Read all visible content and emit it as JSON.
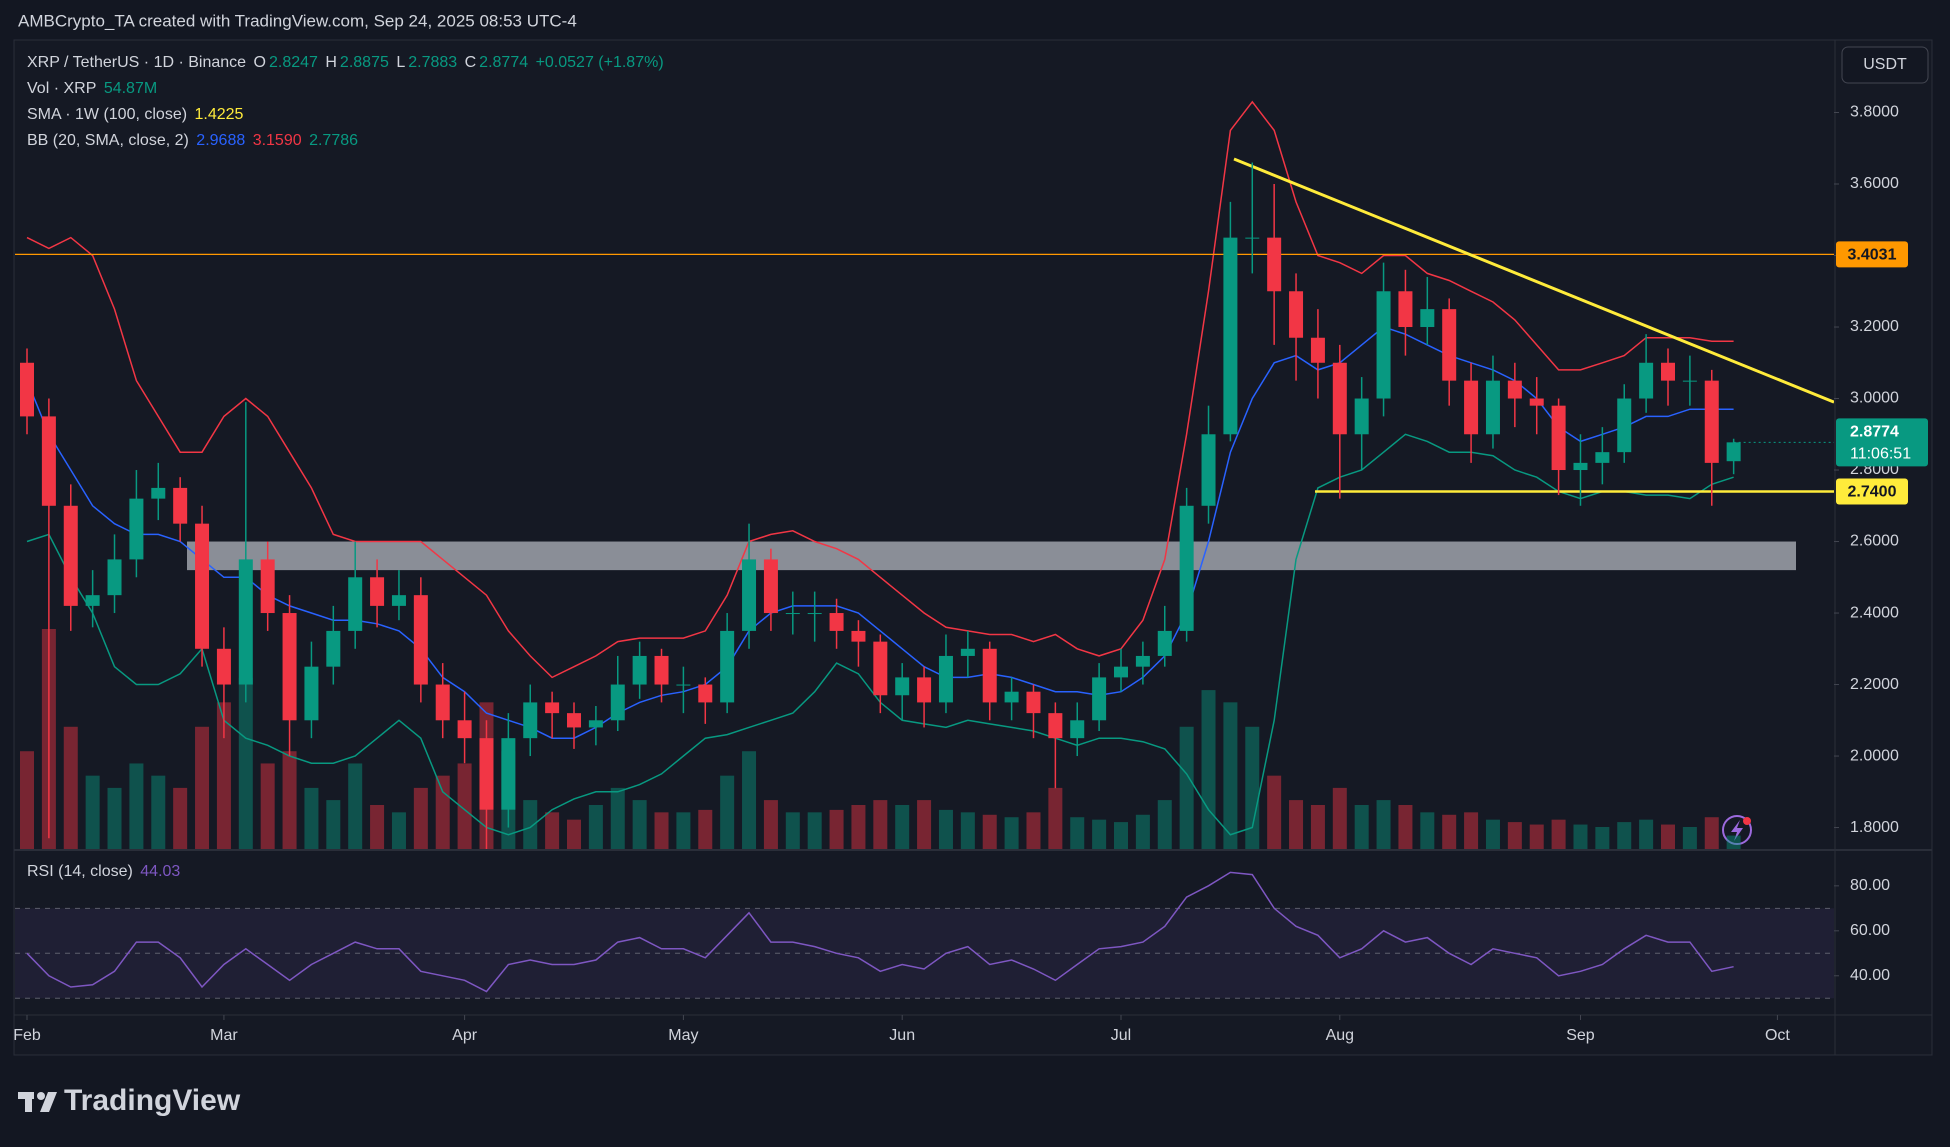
{
  "header": "AMBCrypto_TA created with TradingView.com, Sep 24, 2025 08:53 UTC-4",
  "currency": "USDT",
  "logo": "TradingView",
  "chart_data": {
    "type": "candlestick",
    "title": "XRP / TetherUS · 1D · Binance",
    "ohlc_letters": [
      "O",
      "H",
      "L",
      "C"
    ],
    "change": "+0.0527 (+1.87%)",
    "volume_title": "Vol · XRP",
    "volume_value": "54.87M",
    "sma_title": "SMA · 1W (100, close)",
    "sma_value": 1.4225,
    "sma_color": "#ffeb3b",
    "bb_title": "BB (20, SMA, close, 2)",
    "bb_values": [
      "2.9688",
      "3.1590",
      "2.7786"
    ],
    "categories": [
      "Feb",
      null,
      null,
      null,
      null,
      null,
      null,
      null,
      null,
      "Mar",
      null,
      null,
      null,
      null,
      null,
      null,
      null,
      null,
      null,
      null,
      "Apr",
      null,
      null,
      null,
      null,
      null,
      null,
      null,
      null,
      null,
      "May",
      null,
      null,
      null,
      null,
      null,
      null,
      null,
      null,
      null,
      "Jun",
      null,
      null,
      null,
      null,
      null,
      null,
      null,
      null,
      null,
      "Jul",
      null,
      null,
      null,
      null,
      null,
      null,
      null,
      null,
      null,
      "Aug",
      null,
      null,
      null,
      null,
      null,
      null,
      null,
      null,
      null,
      null,
      "Sep",
      null,
      null,
      null,
      null,
      null,
      null,
      null,
      null,
      "Oct"
    ],
    "open": [
      3.1,
      2.95,
      2.7,
      2.42,
      2.45,
      2.55,
      2.72,
      2.75,
      2.65,
      2.3,
      2.2,
      2.55,
      2.4,
      2.1,
      2.25,
      2.35,
      2.5,
      2.42,
      2.45,
      2.2,
      2.1,
      2.05,
      1.85,
      2.05,
      2.15,
      2.12,
      2.08,
      2.1,
      2.2,
      2.28,
      2.2,
      2.2,
      2.15,
      2.35,
      2.55,
      2.4,
      2.4,
      2.4,
      2.35,
      2.32,
      2.17,
      2.22,
      2.15,
      2.28,
      2.3,
      2.15,
      2.18,
      2.12,
      2.05,
      2.1,
      2.22,
      2.25,
      2.28,
      2.35,
      2.7,
      2.9,
      3.45,
      3.45,
      3.3,
      3.17,
      3.1,
      2.9,
      3.0,
      3.3,
      3.2,
      3.25,
      3.05,
      2.9,
      3.05,
      3.0,
      2.98,
      2.8,
      2.82,
      2.85,
      3.0,
      3.1,
      3.05,
      3.05,
      2.8247,
      null,
      null
    ],
    "high": [
      3.14,
      3.0,
      2.76,
      2.52,
      2.62,
      2.8,
      2.82,
      2.78,
      2.7,
      2.36,
      2.99,
      2.6,
      2.45,
      2.32,
      2.42,
      2.6,
      2.55,
      2.52,
      2.5,
      2.26,
      2.18,
      2.1,
      2.12,
      2.2,
      2.18,
      2.15,
      2.14,
      2.28,
      2.32,
      2.3,
      2.25,
      2.22,
      2.4,
      2.65,
      2.58,
      2.46,
      2.46,
      2.44,
      2.38,
      2.34,
      2.26,
      2.25,
      2.34,
      2.35,
      2.32,
      2.22,
      2.2,
      2.15,
      2.15,
      2.26,
      2.3,
      2.32,
      2.42,
      2.75,
      2.98,
      3.55,
      3.66,
      3.6,
      3.35,
      3.25,
      3.15,
      3.06,
      3.38,
      3.36,
      3.34,
      3.28,
      3.1,
      3.12,
      3.1,
      3.06,
      3.0,
      2.9,
      2.92,
      3.04,
      3.18,
      3.14,
      3.12,
      3.08,
      2.8875,
      null,
      null
    ],
    "low": [
      2.9,
      1.77,
      2.35,
      2.36,
      2.4,
      2.5,
      2.66,
      2.6,
      2.25,
      2.05,
      2.15,
      2.35,
      2.0,
      2.05,
      2.2,
      2.3,
      2.36,
      2.38,
      2.15,
      2.05,
      1.98,
      1.61,
      1.8,
      2.0,
      2.05,
      2.02,
      2.03,
      2.07,
      2.16,
      2.15,
      2.12,
      2.09,
      2.12,
      2.3,
      2.35,
      2.34,
      2.32,
      2.3,
      2.25,
      2.12,
      2.1,
      2.08,
      2.12,
      2.22,
      2.1,
      2.1,
      2.05,
      1.91,
      2.0,
      2.07,
      2.18,
      2.2,
      2.25,
      2.32,
      2.65,
      2.88,
      3.35,
      3.15,
      3.05,
      3.0,
      2.72,
      2.8,
      2.95,
      3.12,
      3.15,
      2.98,
      2.82,
      2.86,
      2.92,
      2.9,
      2.73,
      2.7,
      2.76,
      2.82,
      2.96,
      2.98,
      2.98,
      2.7,
      2.7883,
      null,
      null
    ],
    "close": [
      2.95,
      2.7,
      2.42,
      2.45,
      2.55,
      2.72,
      2.75,
      2.65,
      2.3,
      2.2,
      2.55,
      2.4,
      2.1,
      2.25,
      2.35,
      2.5,
      2.42,
      2.45,
      2.2,
      2.1,
      2.05,
      1.85,
      2.05,
      2.15,
      2.12,
      2.08,
      2.1,
      2.2,
      2.28,
      2.2,
      2.2,
      2.15,
      2.35,
      2.55,
      2.4,
      2.4,
      2.4,
      2.35,
      2.32,
      2.17,
      2.22,
      2.15,
      2.28,
      2.3,
      2.15,
      2.18,
      2.12,
      2.05,
      2.1,
      2.22,
      2.25,
      2.28,
      2.35,
      2.7,
      2.9,
      3.45,
      3.45,
      3.3,
      3.17,
      3.1,
      2.9,
      3.0,
      3.3,
      3.2,
      3.25,
      3.05,
      2.9,
      3.05,
      3.0,
      2.98,
      2.8,
      2.82,
      2.85,
      3.0,
      3.1,
      3.05,
      3.05,
      2.82,
      2.8774,
      null,
      null
    ],
    "up_color": "#089981",
    "down_color": "#f23645",
    "ylim": [
      1.74,
      4.0
    ],
    "yticks": [
      {
        "value": 1.8,
        "label": "1.8000"
      },
      {
        "value": 2.0,
        "label": "2.0000"
      },
      {
        "value": 2.2,
        "label": "2.2000"
      },
      {
        "value": 2.4,
        "label": "2.4000"
      },
      {
        "value": 2.6,
        "label": "2.6000"
      },
      {
        "value": 2.8,
        "label": "2.8000"
      },
      {
        "value": 3.0,
        "label": "3.0000"
      },
      {
        "value": 3.2,
        "label": "3.2000"
      },
      {
        "value": 3.4,
        "label": "3.4000"
      },
      {
        "value": 3.6,
        "label": "3.6000"
      },
      {
        "value": 3.8,
        "label": "3.8000"
      }
    ],
    "bollinger": {
      "upper": {
        "color": "#f23645",
        "values": [
          3.45,
          3.42,
          3.45,
          3.4,
          3.25,
          3.05,
          2.95,
          2.85,
          2.85,
          2.95,
          3.0,
          2.95,
          2.85,
          2.75,
          2.62,
          2.6,
          2.6,
          2.6,
          2.6,
          2.55,
          2.5,
          2.45,
          2.35,
          2.28,
          2.22,
          2.25,
          2.28,
          2.32,
          2.33,
          2.33,
          2.33,
          2.35,
          2.45,
          2.6,
          2.62,
          2.63,
          2.6,
          2.58,
          2.55,
          2.5,
          2.45,
          2.4,
          2.36,
          2.35,
          2.34,
          2.34,
          2.32,
          2.34,
          2.3,
          2.28,
          2.3,
          2.38,
          2.55,
          2.9,
          3.3,
          3.75,
          3.83,
          3.75,
          3.55,
          3.4,
          3.38,
          3.35,
          3.4,
          3.4,
          3.35,
          3.33,
          3.3,
          3.27,
          3.22,
          3.15,
          3.08,
          3.08,
          3.1,
          3.12,
          3.17,
          3.17,
          3.17,
          3.16,
          3.16,
          null,
          null
        ]
      },
      "basis": {
        "color": "#2962ff",
        "values": [
          3.05,
          2.9,
          2.8,
          2.7,
          2.65,
          2.62,
          2.62,
          2.6,
          2.55,
          2.5,
          2.5,
          2.45,
          2.42,
          2.4,
          2.38,
          2.38,
          2.37,
          2.35,
          2.3,
          2.22,
          2.18,
          2.12,
          2.1,
          2.08,
          2.05,
          2.05,
          2.08,
          2.12,
          2.15,
          2.17,
          2.18,
          2.2,
          2.25,
          2.35,
          2.4,
          2.42,
          2.42,
          2.42,
          2.4,
          2.35,
          2.3,
          2.25,
          2.22,
          2.22,
          2.23,
          2.22,
          2.2,
          2.18,
          2.18,
          2.17,
          2.18,
          2.22,
          2.28,
          2.4,
          2.6,
          2.85,
          3.0,
          3.1,
          3.12,
          3.08,
          3.1,
          3.15,
          3.2,
          3.18,
          3.15,
          3.12,
          3.1,
          3.08,
          3.05,
          3.0,
          2.92,
          2.88,
          2.9,
          2.92,
          2.95,
          2.95,
          2.97,
          2.97,
          2.97,
          null,
          null
        ]
      },
      "lower": {
        "color": "#089981",
        "values": [
          2.6,
          2.62,
          2.5,
          2.4,
          2.25,
          2.2,
          2.2,
          2.23,
          2.3,
          2.1,
          2.05,
          2.03,
          2.0,
          1.98,
          1.98,
          2.0,
          2.05,
          2.1,
          2.05,
          1.9,
          1.85,
          1.8,
          1.78,
          1.8,
          1.85,
          1.88,
          1.9,
          1.9,
          1.92,
          1.95,
          2.0,
          2.05,
          2.06,
          2.08,
          2.1,
          2.12,
          2.18,
          2.26,
          2.23,
          2.15,
          2.1,
          2.09,
          2.08,
          2.1,
          2.09,
          2.08,
          2.07,
          2.05,
          2.03,
          2.05,
          2.05,
          2.04,
          2.02,
          1.95,
          1.85,
          1.78,
          1.8,
          2.1,
          2.55,
          2.75,
          2.78,
          2.8,
          2.85,
          2.9,
          2.88,
          2.85,
          2.85,
          2.84,
          2.8,
          2.78,
          2.74,
          2.72,
          2.74,
          2.74,
          2.73,
          2.73,
          2.72,
          2.76,
          2.78,
          null,
          null
        ]
      }
    },
    "volume": {
      "values": [
        400,
        900,
        500,
        300,
        250,
        350,
        300,
        250,
        500,
        600,
        700,
        350,
        400,
        250,
        200,
        350,
        180,
        150,
        250,
        300,
        350,
        600,
        400,
        200,
        150,
        120,
        180,
        250,
        200,
        150,
        150,
        160,
        300,
        400,
        200,
        150,
        150,
        160,
        180,
        200,
        180,
        200,
        160,
        150,
        140,
        130,
        150,
        250,
        130,
        120,
        110,
        140,
        200,
        500,
        650,
        600,
        500,
        300,
        200,
        180,
        250,
        180,
        200,
        180,
        150,
        140,
        150,
        120,
        110,
        100,
        120,
        100,
        90,
        110,
        120,
        100,
        90,
        130,
        54.87,
        null,
        null
      ]
    },
    "levels": [
      {
        "value": 3.4031,
        "color": "#ff9800"
      },
      {
        "value": 2.74,
        "label": "2.7400",
        "color": "#ffeb3b"
      }
    ],
    "zone": {
      "values": [
        2.52,
        2.6
      ],
      "color": "#b2b5be"
    },
    "trendline": {
      "values": [
        3.67,
        2.99
      ],
      "color": "#ffeb3b"
    },
    "countdown": "11:06:51",
    "rsi": {
      "title": "RSI (14, close)",
      "color": "#7e57c2",
      "values": [
        50,
        40,
        35,
        36,
        42,
        55,
        55,
        48,
        35,
        45,
        52,
        45,
        38,
        45,
        50,
        55,
        52,
        52,
        42,
        40,
        38,
        33,
        45,
        47,
        45,
        45,
        47,
        55,
        57,
        52,
        52,
        48,
        58,
        68,
        55,
        55,
        53,
        50,
        48,
        42,
        45,
        43,
        50,
        53,
        45,
        47,
        43,
        38,
        45,
        52,
        53,
        55,
        62,
        75,
        80,
        86,
        85,
        70,
        62,
        58,
        48,
        52,
        60,
        55,
        57,
        50,
        45,
        52,
        50,
        48,
        40,
        42,
        45,
        52,
        58,
        55,
        55,
        42,
        44.03,
        null,
        null
      ],
      "ylim": [
        23,
        95.5
      ],
      "yticks": [
        {
          "value": 40,
          "label": "40.00"
        },
        {
          "value": 60,
          "label": "60.00"
        },
        {
          "value": 80,
          "label": "80.00"
        }
      ],
      "levels": [
        70,
        50,
        30
      ]
    }
  }
}
